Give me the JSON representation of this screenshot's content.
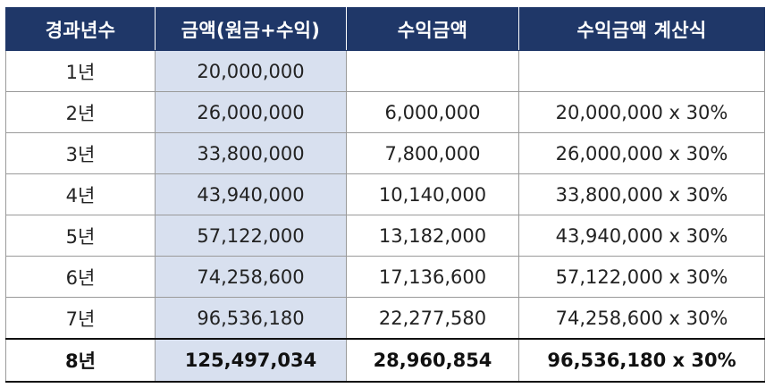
{
  "table": {
    "headers": [
      "경과년수",
      "금액(원금+수익)",
      "수익금액",
      "수익금액 계산식"
    ],
    "rows": [
      [
        "1년",
        "20,000,000",
        "",
        ""
      ],
      [
        "2년",
        "26,000,000",
        "6,000,000",
        "20,000,000 x 30%"
      ],
      [
        "3년",
        "33,800,000",
        "7,800,000",
        "26,000,000 x 30%"
      ],
      [
        "4년",
        "43,940,000",
        "10,140,000",
        "33,800,000 x 30%"
      ],
      [
        "5년",
        "57,122,000",
        "13,182,000",
        "43,940,000 x 30%"
      ],
      [
        "6년",
        "74,258,600",
        "17,136,600",
        "57,122,000 x 30%"
      ],
      [
        "7년",
        "96,536,180",
        "22,277,580",
        "74,258,600 x 30%"
      ],
      [
        "8년",
        "125,497,034",
        "28,960,854",
        "96,536,180 x 30%"
      ]
    ]
  },
  "colors": {
    "header_bg": "#1f3768",
    "header_text": "#ffffff",
    "highlight_column": "#d8e0ef",
    "border": "#9a9a9a"
  }
}
